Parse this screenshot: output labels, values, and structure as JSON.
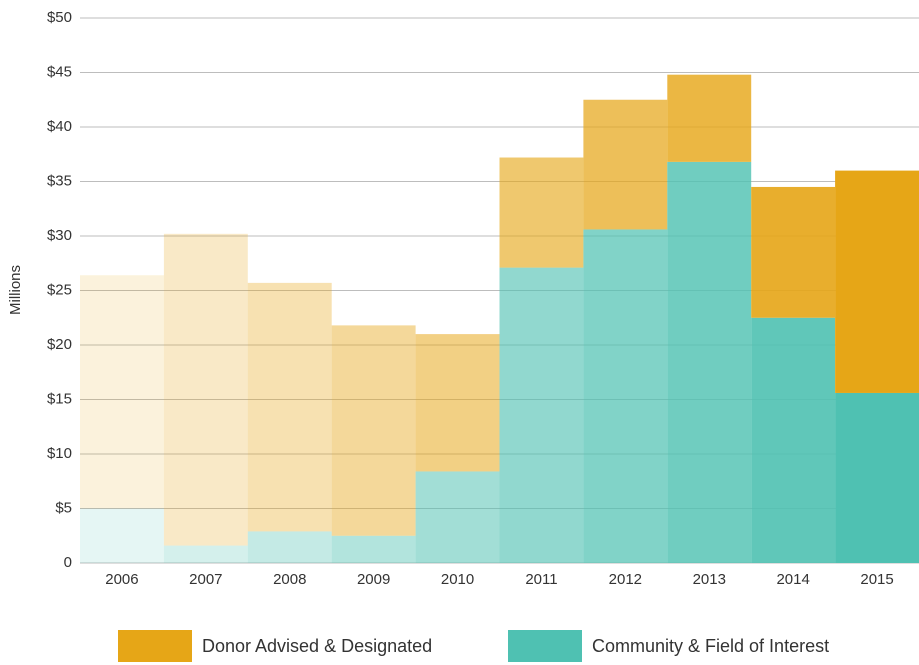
{
  "chart_data": {
    "type": "stacked_bar",
    "y_label": "Millions",
    "categories": [
      "2006",
      "2007",
      "2008",
      "2009",
      "2010",
      "2011",
      "2012",
      "2013",
      "2014",
      "2015"
    ],
    "series": [
      {
        "name": "Community & Field of Interest",
        "color": "#4fc1b2",
        "values": [
          5.0,
          1.6,
          2.9,
          2.5,
          8.4,
          27.1,
          30.6,
          36.8,
          22.5,
          15.6
        ]
      },
      {
        "name": "Donor Advised & Designated",
        "color": "#e6a617",
        "values": [
          21.4,
          28.6,
          22.8,
          19.3,
          12.6,
          10.1,
          11.9,
          8.0,
          12.0,
          20.4
        ]
      }
    ],
    "legend_order": [
      1,
      0
    ],
    "ylim": [
      0,
      50
    ],
    "yticks": [
      0,
      {
        "value": 5,
        "label": "$5"
      },
      {
        "value": 10,
        "label": "$10"
      },
      {
        "value": 15,
        "label": "$15"
      },
      {
        "value": 20,
        "label": "$20"
      },
      {
        "value": 25,
        "label": "$25"
      },
      {
        "value": 30,
        "label": "$30"
      },
      {
        "value": 35,
        "label": "$35"
      },
      {
        "value": 40,
        "label": "$40"
      },
      {
        "value": 45,
        "label": "$45"
      },
      {
        "value": 50,
        "label": "$50"
      }
    ],
    "grid": true
  }
}
